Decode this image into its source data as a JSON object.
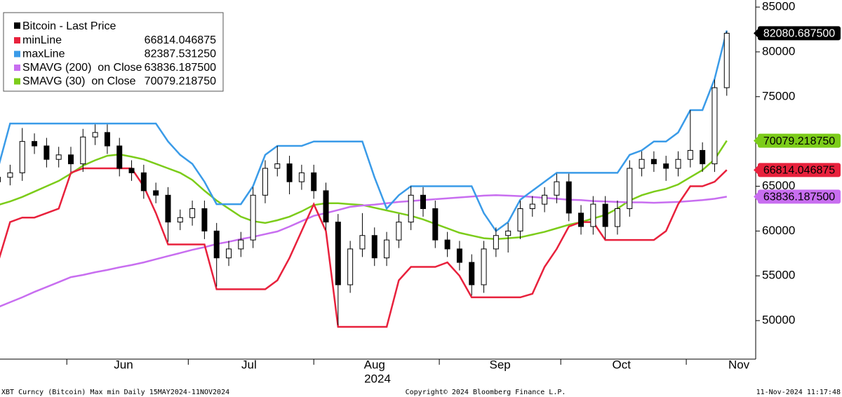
{
  "chart_data": {
    "type": "candlestick",
    "name": "Bitcoin - Last Price",
    "color": "#000000",
    "x": [
      0,
      3,
      6,
      9,
      12,
      15,
      18,
      21,
      24,
      27,
      30,
      33,
      36,
      39,
      42,
      45,
      48,
      51,
      54,
      57,
      60,
      63,
      66,
      69,
      72,
      75,
      78,
      81,
      84,
      87,
      90,
      93,
      96,
      99,
      102,
      105,
      108,
      111,
      114,
      117,
      120,
      123,
      126,
      129,
      132,
      135,
      138,
      141,
      144,
      147,
      150,
      153,
      156,
      159,
      162,
      165,
      168,
      171,
      174,
      177,
      180
    ],
    "open": [
      65500,
      66000,
      66500,
      70000,
      69500,
      68000,
      68500,
      67500,
      70500,
      71000,
      69500,
      67000,
      66500,
      64500,
      64000,
      61000,
      61500,
      62500,
      60000,
      57000,
      58000,
      59000,
      64000,
      67000,
      67500,
      65500,
      66500,
      64500,
      61000,
      54000,
      58000,
      59500,
      57000,
      59000,
      61000,
      64000,
      62500,
      59000,
      58000,
      56500,
      54000,
      58000,
      59500,
      60000,
      62500,
      63000,
      64000,
      65500,
      62000,
      60500,
      63000,
      60500,
      62500,
      67000,
      68000,
      67500,
      67000,
      68000,
      69000,
      67500,
      76000
    ],
    "high": [
      66900,
      67400,
      71500,
      70900,
      70400,
      69400,
      69400,
      71400,
      71900,
      71900,
      70400,
      67900,
      67400,
      65400,
      64900,
      62400,
      63400,
      63400,
      60900,
      58900,
      59900,
      64900,
      67900,
      69500,
      68400,
      67400,
      67400,
      65400,
      61900,
      58900,
      62000,
      60400,
      59900,
      61900,
      65000,
      64900,
      63400,
      59900,
      58900,
      57400,
      58900,
      60400,
      60900,
      63400,
      63900,
      64900,
      66400,
      66400,
      62900,
      63900,
      63900,
      63400,
      67900,
      68900,
      68900,
      68400,
      68900,
      73500,
      69900,
      76900,
      82300
    ],
    "low": [
      64600,
      65100,
      65600,
      68600,
      67100,
      67100,
      66600,
      66600,
      69600,
      68600,
      66100,
      65600,
      63600,
      63100,
      58800,
      60100,
      60600,
      59100,
      53800,
      56100,
      57100,
      58100,
      63100,
      66100,
      64100,
      64600,
      63600,
      60100,
      49500,
      53100,
      57100,
      56100,
      56100,
      58100,
      60100,
      61600,
      58100,
      57100,
      55600,
      52800,
      53100,
      57100,
      57600,
      59100,
      61600,
      62100,
      63100,
      61100,
      59600,
      59600,
      59100,
      59600,
      61600,
      66100,
      66600,
      65600,
      66100,
      67100,
      66600,
      66600,
      75100
    ],
    "close": [
      66000,
      66500,
      70000,
      69500,
      68000,
      68500,
      67500,
      70500,
      71000,
      69500,
      67000,
      66500,
      64500,
      64000,
      61000,
      61500,
      62500,
      60000,
      57000,
      58000,
      59000,
      64000,
      67000,
      67500,
      65500,
      66500,
      64500,
      61000,
      54000,
      58000,
      59500,
      57000,
      59000,
      61000,
      64000,
      62500,
      59000,
      58000,
      56500,
      54000,
      58000,
      59500,
      60000,
      62500,
      63000,
      64000,
      65500,
      62000,
      60500,
      63000,
      60500,
      62500,
      67000,
      68000,
      67500,
      67000,
      68000,
      69000,
      67500,
      76000,
      82080.6875
    ],
    "last_value": 82080.6875,
    "last_label": "82080.687500",
    "overlays": [
      {
        "name": "minLine",
        "color": "#e8213c",
        "tag": true,
        "last_value": 66814.046875,
        "last_label": "66814.046875",
        "values": [
          56500,
          61000,
          61500,
          61500,
          62000,
          62500,
          66500,
          67000,
          67000,
          67000,
          67000,
          67000,
          65000,
          62000,
          58500,
          58500,
          58500,
          58500,
          53500,
          53500,
          53500,
          53500,
          53500,
          54500,
          57000,
          60000,
          63000,
          60000,
          49300,
          49300,
          49300,
          49300,
          49300,
          54500,
          56000,
          56000,
          56000,
          56500,
          55000,
          52600,
          52600,
          52600,
          52600,
          52600,
          53000,
          56000,
          58000,
          60500,
          61000,
          61000,
          59000,
          59000,
          59000,
          59000,
          59000,
          60000,
          63000,
          65000,
          65000,
          65500,
          66814.046875
        ]
      },
      {
        "name": "maxLine",
        "color": "#3a9be8",
        "tag": false,
        "last_value": 82387.53125,
        "last_label": "82387.531250",
        "values": [
          67000,
          72000,
          72000,
          72000,
          72000,
          72000,
          72000,
          72000,
          72000,
          72000,
          72000,
          72000,
          72000,
          72000,
          70000,
          68500,
          67500,
          65500,
          63000,
          63000,
          63000,
          65000,
          68500,
          69500,
          69500,
          69500,
          70000,
          70000,
          70000,
          70000,
          70000,
          66000,
          62500,
          64000,
          65000,
          65000,
          65000,
          65000,
          65000,
          65000,
          62000,
          60000,
          61000,
          63500,
          64500,
          65500,
          66500,
          66500,
          66500,
          66500,
          66500,
          66500,
          68500,
          69000,
          70000,
          70000,
          71000,
          73500,
          73500,
          77000,
          82387.53125
        ]
      },
      {
        "name": "SMAVG (200)  on Close",
        "color": "#c86ef0",
        "tag": true,
        "last_value": 63836.1875,
        "last_label": "63836.187500",
        "values": [
          51500,
          52050,
          52600,
          53200,
          53750,
          54300,
          54850,
          55100,
          55400,
          55650,
          55950,
          56200,
          56500,
          56850,
          57200,
          57550,
          57900,
          58200,
          58550,
          58800,
          59100,
          59350,
          59650,
          59950,
          60500,
          61100,
          61700,
          62000,
          62350,
          62700,
          62850,
          62950,
          63100,
          63250,
          63350,
          63450,
          63550,
          63650,
          63750,
          63850,
          63950,
          64000,
          63950,
          63900,
          63800,
          63700,
          63600,
          63500,
          63450,
          63350,
          63300,
          63250,
          63200,
          63200,
          63150,
          63200,
          63250,
          63350,
          63450,
          63600,
          63836.1875
        ]
      },
      {
        "name": "SMAVG (30)  on Close",
        "color": "#7ccc1a",
        "tag": true,
        "last_value": 70079.21875,
        "last_label": "70079.218750",
        "values": [
          62900,
          63300,
          63800,
          64400,
          65000,
          65600,
          66400,
          67300,
          67900,
          68400,
          68550,
          68300,
          68000,
          67500,
          67000,
          66500,
          65700,
          64500,
          63400,
          62500,
          61600,
          61100,
          60900,
          61200,
          61600,
          62200,
          62900,
          63100,
          63100,
          63000,
          62900,
          62600,
          62300,
          62000,
          61700,
          61300,
          60800,
          60300,
          59800,
          59500,
          59200,
          59100,
          59200,
          59300,
          59600,
          59900,
          60300,
          60700,
          61000,
          61400,
          61800,
          62500,
          63400,
          64000,
          64400,
          64700,
          65200,
          66000,
          66800,
          68000,
          70079.21875
        ]
      }
    ],
    "ylim": [
      45700,
      85790
    ],
    "yticks": [
      50000,
      55000,
      60000,
      65000,
      70000,
      75000,
      80000,
      85000
    ],
    "xlim": [
      0.5,
      186.8
    ],
    "xticks": [
      {
        "value": 31,
        "label": "Jun"
      },
      {
        "value": 62,
        "label": "Jul"
      },
      {
        "value": 93,
        "label": "Aug"
      },
      {
        "value": 124,
        "label": "Sep"
      },
      {
        "value": 154,
        "label": "Oct"
      },
      {
        "value": 183,
        "label": "Nov"
      }
    ],
    "xminorticks": [
      17,
      47,
      78,
      109,
      139,
      170
    ],
    "xlabel": "2024"
  },
  "footer": {
    "left": "XBT Curncy (Bitcoin) Max min  Daily 15MAY2024-11NOV2024",
    "center": "Copyright© 2024 Bloomberg Finance L.P.",
    "right": "11-Nov-2024 11:17:48"
  }
}
